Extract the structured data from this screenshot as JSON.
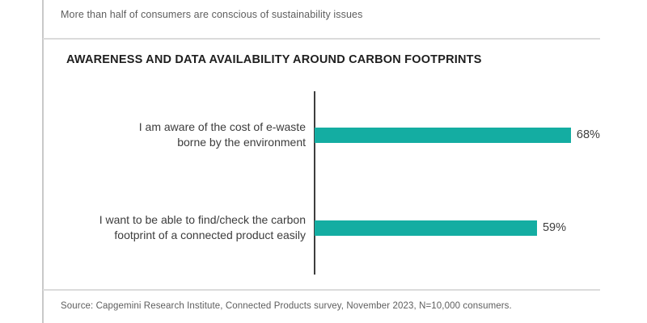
{
  "header": {
    "kicker": "More than half of consumers are conscious of sustainability issues"
  },
  "footer": {
    "source": "Source: Capgemini Research Institute, Connected Products survey, November 2023, N=10,000 consumers."
  },
  "colors": {
    "bar_teal": "#14ada2",
    "axis_line": "#3e3e3e",
    "divider_gray": "#dbdbdb",
    "text_dark": "#1e1e1e",
    "text_gray": "#5e5e5e"
  },
  "chart_data": {
    "type": "bar",
    "orientation": "horizontal",
    "title": "AWARENESS AND DATA AVAILABILITY AROUND CARBON FOOTPRINTS",
    "categories": [
      "I am aware of the cost of e-waste borne by the environment",
      "I want to be able to find/check the carbon footprint of a connected product easily"
    ],
    "values": [
      68,
      59
    ],
    "value_labels": [
      "68%",
      "59%"
    ],
    "xlabel": "",
    "ylabel": "",
    "xlim": [
      0,
      100
    ],
    "grid": false,
    "legend": false,
    "bar_color": "#14ada2",
    "rows": [
      {
        "label_line1": "I am aware of the cost of e-waste",
        "label_line2": "borne by the environment",
        "value": 68,
        "value_label": "68%"
      },
      {
        "label_line1": "I want to be able to find/check the carbon",
        "label_line2": "footprint of a connected product easily",
        "value": 59,
        "value_label": "59%"
      }
    ]
  }
}
